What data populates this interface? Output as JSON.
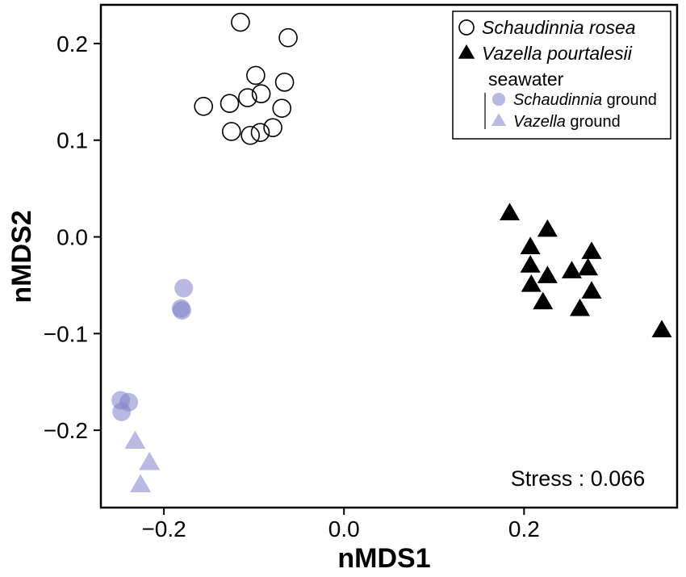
{
  "chart_data": {
    "type": "scatter",
    "title": "",
    "xlabel": "nMDS1",
    "ylabel": "nMDS2",
    "xlim": [
      -0.27,
      0.37
    ],
    "ylim": [
      -0.28,
      0.24
    ],
    "xticks": [
      -0.2,
      0.0,
      0.2
    ],
    "yticks": [
      0.2,
      0.1,
      0.0,
      -0.1,
      -0.2
    ],
    "xtick_labels": [
      "−0.2",
      "0.0",
      "0.2"
    ],
    "ytick_labels": [
      "0.2",
      "0.1",
      "0.0",
      "−0.1",
      "−0.2"
    ],
    "grid": false,
    "legend_position": "top-right",
    "legend": {
      "entries": [
        {
          "parts": [
            {
              "text": "Schaudinnia rosea",
              "italic": true
            }
          ],
          "marker": "open-circle"
        },
        {
          "parts": [
            {
              "text": "Vazella pourtalesii",
              "italic": true
            }
          ],
          "marker": "filled-triangle"
        }
      ],
      "group_heading": "seawater",
      "sub_entries": [
        {
          "parts": [
            {
              "text": "Schaudinnia",
              "italic": true
            },
            {
              "text": " ground",
              "italic": false
            }
          ],
          "marker": "light-circle"
        },
        {
          "parts": [
            {
              "text": "Vazella",
              "italic": true
            },
            {
              "text": " ground",
              "italic": false
            }
          ],
          "marker": "light-triangle"
        }
      ]
    },
    "annotation": "Stress : 0.066",
    "colors": {
      "open_circle_stroke": "#000000",
      "triangle_fill": "#000000",
      "seawater_fill": "#8080c8",
      "seawater_opacity": 0.55
    },
    "series": [
      {
        "key": "schaudinnia",
        "marker": "open-circle",
        "points": [
          [
            -0.115,
            0.222
          ],
          [
            -0.062,
            0.206
          ],
          [
            -0.098,
            0.167
          ],
          [
            -0.066,
            0.16
          ],
          [
            -0.107,
            0.144
          ],
          [
            -0.092,
            0.148
          ],
          [
            -0.127,
            0.138
          ],
          [
            -0.156,
            0.135
          ],
          [
            -0.069,
            0.133
          ],
          [
            -0.125,
            0.109
          ],
          [
            -0.079,
            0.113
          ],
          [
            -0.093,
            0.108
          ],
          [
            -0.104,
            0.105
          ]
        ]
      },
      {
        "key": "vazella",
        "marker": "filled-triangle",
        "points": [
          [
            0.184,
            0.024
          ],
          [
            0.226,
            0.007
          ],
          [
            0.207,
            -0.011
          ],
          [
            0.275,
            -0.016
          ],
          [
            0.207,
            -0.03
          ],
          [
            0.253,
            -0.036
          ],
          [
            0.271,
            -0.033
          ],
          [
            0.226,
            -0.041
          ],
          [
            0.208,
            -0.05
          ],
          [
            0.275,
            -0.057
          ],
          [
            0.221,
            -0.068
          ],
          [
            0.262,
            -0.075
          ],
          [
            0.353,
            -0.097
          ]
        ]
      },
      {
        "key": "schaudinnia_ground",
        "marker": "light-circle",
        "points": [
          [
            -0.178,
            -0.053
          ],
          [
            -0.181,
            -0.074
          ],
          [
            -0.18,
            -0.076
          ],
          [
            -0.248,
            -0.169
          ],
          [
            -0.239,
            -0.171
          ],
          [
            -0.247,
            -0.181
          ]
        ]
      },
      {
        "key": "vazella_ground",
        "marker": "light-triangle",
        "points": [
          [
            -0.232,
            -0.212
          ],
          [
            -0.216,
            -0.234
          ],
          [
            -0.226,
            -0.257
          ]
        ]
      }
    ]
  }
}
